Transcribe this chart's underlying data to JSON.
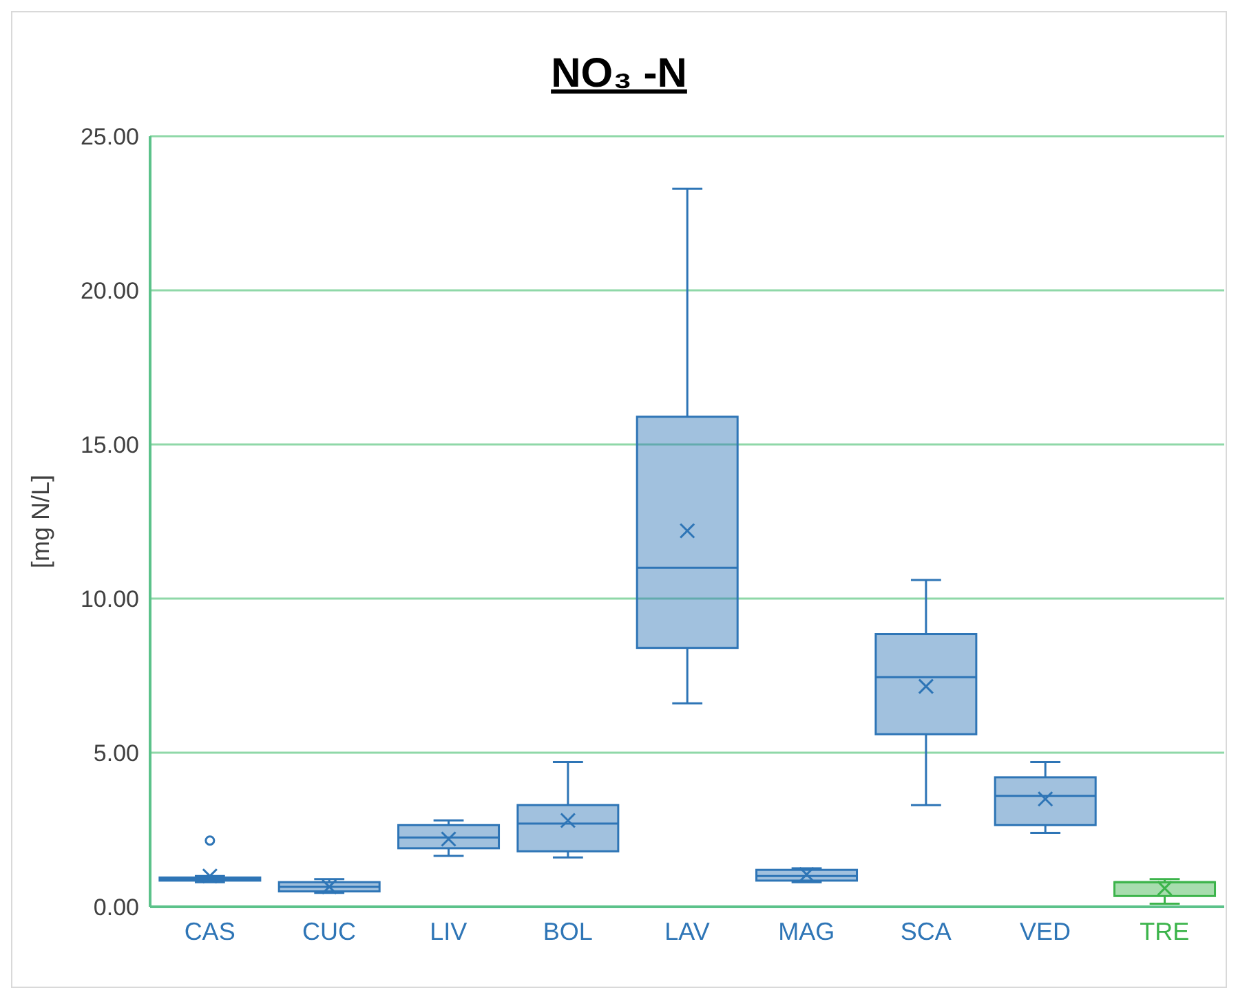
{
  "chart_data": {
    "type": "box",
    "title": "NO₃ -N",
    "ylabel": "[mg N/L]",
    "categories": [
      "CAS",
      "CUC",
      "LIV",
      "BOL",
      "LAV",
      "MAG",
      "SCA",
      "VED",
      "TRE"
    ],
    "ylim": [
      0,
      25
    ],
    "yticks": [
      {
        "value": 0,
        "label": "0.00"
      },
      {
        "value": 5,
        "label": "5.00"
      },
      {
        "value": 10,
        "label": "10.00"
      },
      {
        "value": 15,
        "label": "15.00"
      },
      {
        "value": 20,
        "label": "20.00"
      },
      {
        "value": 25,
        "label": "25.00"
      }
    ],
    "grid": "y",
    "series": [
      {
        "color": "#2e75b6",
        "boxes": [
          {
            "low": 0.8,
            "q1": 0.85,
            "median": 0.9,
            "q3": 0.95,
            "high": 1.0,
            "mean": 1.0,
            "outliers": [
              2.15
            ]
          },
          {
            "low": 0.45,
            "q1": 0.5,
            "median": 0.65,
            "q3": 0.8,
            "high": 0.9,
            "mean": 0.65
          },
          {
            "low": 1.65,
            "q1": 1.9,
            "median": 2.25,
            "q3": 2.65,
            "high": 2.8,
            "mean": 2.2
          },
          {
            "low": 1.6,
            "q1": 1.8,
            "median": 2.7,
            "q3": 3.3,
            "high": 4.7,
            "mean": 2.8
          },
          {
            "low": 6.6,
            "q1": 8.4,
            "median": 11.0,
            "q3": 15.9,
            "high": 23.3,
            "mean": 12.2
          },
          {
            "low": 0.8,
            "q1": 0.85,
            "median": 1.0,
            "q3": 1.2,
            "high": 1.25,
            "mean": 1.05
          },
          {
            "low": 3.3,
            "q1": 5.6,
            "median": 7.45,
            "q3": 8.85,
            "high": 10.6,
            "mean": 7.15
          },
          {
            "low": 2.4,
            "q1": 2.65,
            "median": 3.6,
            "q3": 4.2,
            "high": 4.7,
            "mean": 3.5
          },
          null
        ]
      },
      {
        "color": "#3cb44b",
        "boxes": [
          null,
          null,
          null,
          null,
          null,
          null,
          null,
          null,
          {
            "low": 0.1,
            "q1": 0.35,
            "median": 0.8,
            "q3": 0.8,
            "high": 0.9,
            "mean": 0.6
          }
        ]
      }
    ]
  }
}
